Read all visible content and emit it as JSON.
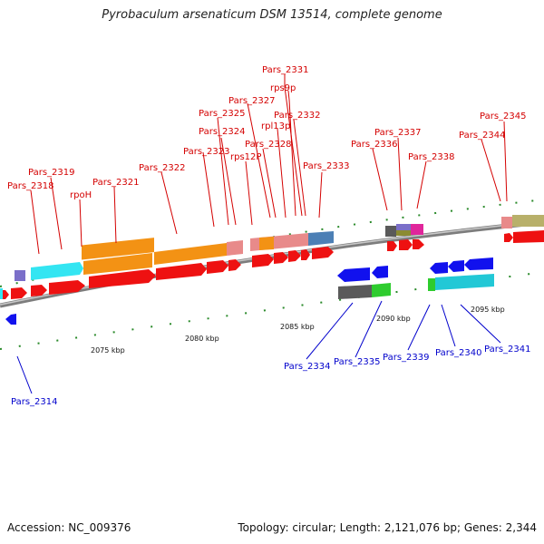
{
  "title": "Pyrobaculum arsenaticum DSM 13514, complete genome",
  "footer": {
    "accession": "Accession: NC_009376",
    "topology": "Topology: circular; Length: 2,121,076 bp; Genes: 2,344"
  },
  "ticks": [
    "2075 kbp",
    "2080 kbp",
    "2085 kbp",
    "2090 kbp",
    "2095 kbp"
  ],
  "labels_top": [
    "Pars_2331",
    "rps9p",
    "Pars_2327",
    "Pars_2325",
    "rpl13p",
    "Pars_2332",
    "Pars_2324",
    "Pars_2328",
    "Pars_2323",
    "rps12P",
    "Pars_2322",
    "Pars_2333",
    "Pars_2319",
    "Pars_2318",
    "Pars_2321",
    "rpoH",
    "Pars_2337",
    "Pars_2336",
    "Pars_2338",
    "Pars_2345",
    "Pars_2344"
  ],
  "labels_bottom": [
    "Pars_2314",
    "Pars_2334",
    "Pars_2335",
    "Pars_2339",
    "Pars_2340",
    "Pars_2341"
  ],
  "colors": {
    "forward_label": "#d40000",
    "reverse_label": "#0000cc",
    "backbone": "#8a8a8a",
    "tick_mark": "#2a8a2a"
  }
}
